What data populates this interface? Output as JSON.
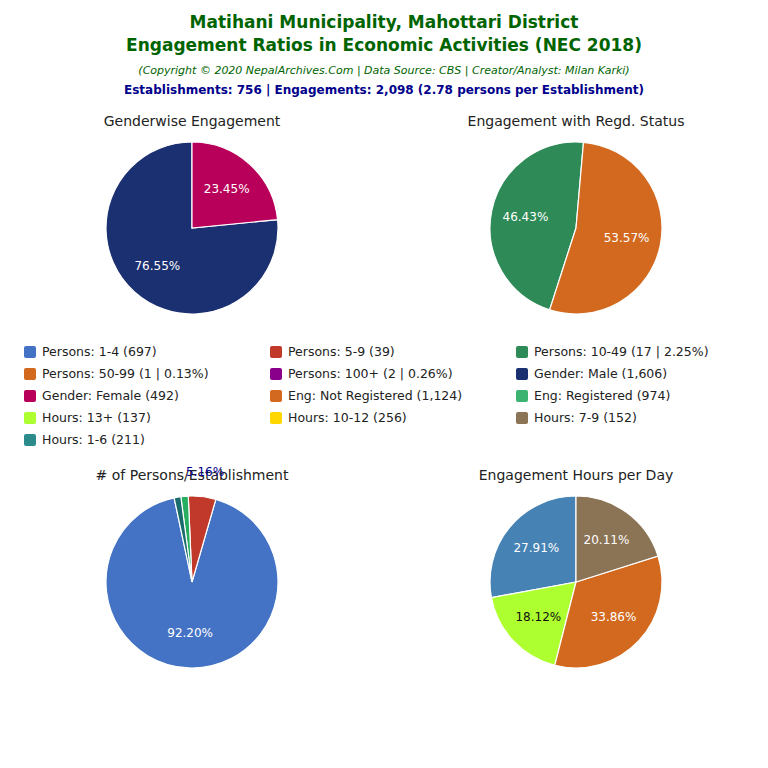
{
  "title": "Matihani Municipality, Mahottari District\nEngagement Ratios in Economic Activities (NEC 2018)",
  "subtitle": "(Copyright © 2020 NepalArchives.Com | Data Source: CBS | Creator/Analyst: Milan Karki)",
  "annotations": [
    "Establishments: 756 | Engagements: 2,098 (2.78 persons per Establishment)"
  ],
  "chart_data": [
    {
      "type": "pie",
      "title": "Genderwise Engagement",
      "values": [
        76.55,
        23.45
      ],
      "colors": [
        "#1B3070",
        "#B8005A"
      ],
      "value_labels": [
        "76.55%",
        "23.45%"
      ],
      "data_labels": true
    },
    {
      "type": "pie",
      "title": "Engagement with Regd. Status",
      "values": [
        46.43,
        53.57
      ],
      "colors": [
        "#2E8B57",
        "#D2691E"
      ],
      "value_labels": [
        "46.43%",
        "53.57%"
      ],
      "data_labels": true
    },
    {
      "type": "pie",
      "title": "# of Persons/Establishment",
      "values": [
        92.2,
        5.16,
        1.38,
        1.26
      ],
      "colors": [
        "#4472C4",
        "#C0392B",
        "#27AE60",
        "#1A6B6B"
      ],
      "value_labels": [
        "92.20%",
        "5.16%",
        null,
        null
      ],
      "data_labels": true
    },
    {
      "type": "pie",
      "title": "Engagement Hours per Day",
      "values": [
        27.91,
        18.12,
        33.86,
        20.11
      ],
      "colors": [
        "#4682B4",
        "#ADFF2F",
        "#D2691E",
        "#8B7355"
      ],
      "value_labels": [
        "27.91%",
        "18.12%",
        "33.86%",
        "20.11%"
      ],
      "data_labels": true
    }
  ],
  "legend_columns": [
    [
      {
        "name": "Persons: 1-4 (697)",
        "color": "#4472C4"
      },
      {
        "name": "Persons: 50-99 (1 | 0.13%)",
        "color": "#D2691E"
      },
      {
        "name": "Gender: Female (492)",
        "color": "#B8005A"
      },
      {
        "name": "Hours: 13+ (137)",
        "color": "#ADFF2F"
      },
      {
        "name": "Hours: 1-6 (211)",
        "color": "#2E8B8B"
      }
    ],
    [
      {
        "name": "Persons: 5-9 (39)",
        "color": "#C0392B"
      },
      {
        "name": "Persons: 100+ (2 | 0.26%)",
        "color": "#8B008B"
      },
      {
        "name": "Eng: Not Registered (1,124)",
        "color": "#D2691E"
      },
      {
        "name": "Hours: 10-12 (256)",
        "color": "#FFD700"
      }
    ],
    [
      {
        "name": "Persons: 10-49 (17 | 2.25%)",
        "color": "#2E8B57"
      },
      {
        "name": "Gender: Male (1,606)",
        "color": "#1B3070"
      },
      {
        "name": "Eng: Registered (974)",
        "color": "#3CB371"
      },
      {
        "name": "Hours: 7-9 (152)",
        "color": "#8B7355"
      }
    ]
  ]
}
